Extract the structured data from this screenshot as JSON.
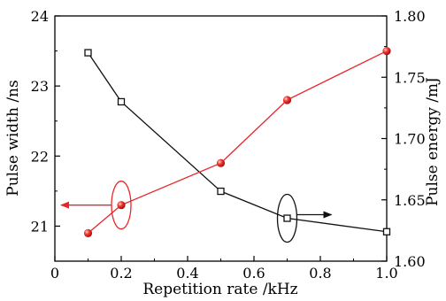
{
  "chart_data": {
    "type": "line",
    "xlabel": "Repetition rate /kHz",
    "ylabel_left": "Pulse width /ns",
    "ylabel_right": "Pulse energy /mJ",
    "xlim": [
      0,
      1.0
    ],
    "ylim_left": [
      20.5,
      24
    ],
    "ylim_right": [
      1.6,
      1.8
    ],
    "x_ticks": [
      "0",
      "0.2",
      "0.4",
      "0.6",
      "0.8",
      "1.0"
    ],
    "y_left_ticks": [
      "21",
      "22",
      "23",
      "24"
    ],
    "y_right_ticks": [
      "1.60",
      "1.65",
      "1.70",
      "1.75",
      "1.80"
    ],
    "grid": false,
    "series": [
      {
        "axis": "right",
        "color": "#111111",
        "marker": "open-square",
        "x": [
          0.1,
          0.2,
          0.5,
          0.7,
          1.0
        ],
        "y": [
          1.77,
          1.73,
          1.657,
          1.635,
          1.624
        ]
      },
      {
        "axis": "left",
        "color": "#e8262a",
        "marker": "red-sphere",
        "x": [
          0.1,
          0.2,
          0.5,
          0.7,
          1.0
        ],
        "y": [
          20.9,
          21.3,
          21.9,
          22.8,
          23.5
        ]
      }
    ],
    "annotations": [
      {
        "type": "ellipse-arrow",
        "series": 1,
        "direction": "left",
        "color": "#e8262a"
      },
      {
        "type": "ellipse-arrow",
        "series": 0,
        "direction": "right",
        "color": "#111111"
      }
    ]
  }
}
